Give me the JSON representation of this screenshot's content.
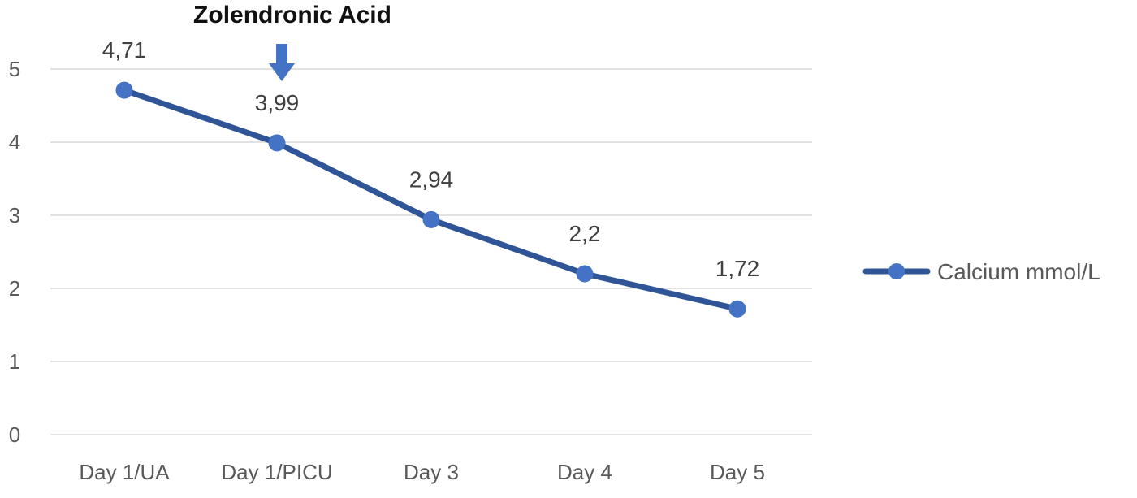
{
  "chart_data": {
    "type": "line",
    "categories": [
      "Day 1/UA",
      "Day 1/PICU",
      "Day 3",
      "Day 4",
      "Day 5"
    ],
    "series": [
      {
        "name": "Calcium mmol/L",
        "values": [
          4.71,
          3.99,
          2.94,
          2.2,
          1.72
        ],
        "data_labels": [
          "4,71",
          "3,99",
          "2,94",
          "2,2",
          "1,72"
        ],
        "color": "#2F5597",
        "marker_color": "#4472C4"
      }
    ],
    "y_ticks": [
      "0",
      "1",
      "2",
      "3",
      "4",
      "5"
    ],
    "ylim": [
      0,
      5
    ],
    "grid": true,
    "grid_color": "#D9D9D9",
    "legend_position": "right",
    "annotation": {
      "text": "Zolendronic Acid",
      "category": "Day 1/PICU",
      "arrow_color": "#4472C4"
    }
  }
}
